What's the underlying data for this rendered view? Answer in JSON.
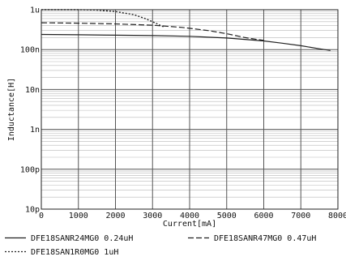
{
  "chart_data": {
    "type": "line",
    "xlabel": "Current[mA]",
    "ylabel": "Inductance[H]",
    "xlim": [
      0,
      8000
    ],
    "ylim": [
      1e-11,
      1e-06
    ],
    "yscale": "log",
    "grid": true,
    "x_ticks": [
      "0",
      "1000",
      "2000",
      "3000",
      "4000",
      "5000",
      "6000",
      "7000",
      "8000"
    ],
    "y_ticks": [
      "10p",
      "100p",
      "1n",
      "10n",
      "100n",
      "1u"
    ],
    "series": [
      {
        "name": "DFE18SANR24MG0  0.24uH",
        "style": "solid",
        "color": "#222222",
        "x": [
          0,
          1000,
          2000,
          3000,
          4000,
          5000,
          6000,
          6500,
          7000,
          7500,
          7800
        ],
        "y": [
          2.4e-07,
          2.35e-07,
          2.3e-07,
          2.25e-07,
          2.15e-07,
          1.95e-07,
          1.65e-07,
          1.45e-07,
          1.25e-07,
          1.05e-07,
          9.5e-08
        ]
      },
      {
        "name": "DFE18SANR47MG0  0.47uH",
        "style": "dashed",
        "color": "#222222",
        "x": [
          0,
          1000,
          2000,
          3000,
          3800,
          4500,
          5000,
          5500,
          6000
        ],
        "y": [
          4.7e-07,
          4.6e-07,
          4.4e-07,
          4.1e-07,
          3.6e-07,
          3e-07,
          2.5e-07,
          2e-07,
          1.7e-07
        ]
      },
      {
        "name": "DFE18SAN1R0MG0  1uH",
        "style": "dotted",
        "color": "#222222",
        "x": [
          0,
          1000,
          1500,
          2000,
          2500,
          2800,
          3000,
          3300
        ],
        "y": [
          1e-06,
          1e-06,
          9.8e-07,
          9e-07,
          7.5e-07,
          6e-07,
          5e-07,
          3.7e-07
        ]
      }
    ]
  }
}
